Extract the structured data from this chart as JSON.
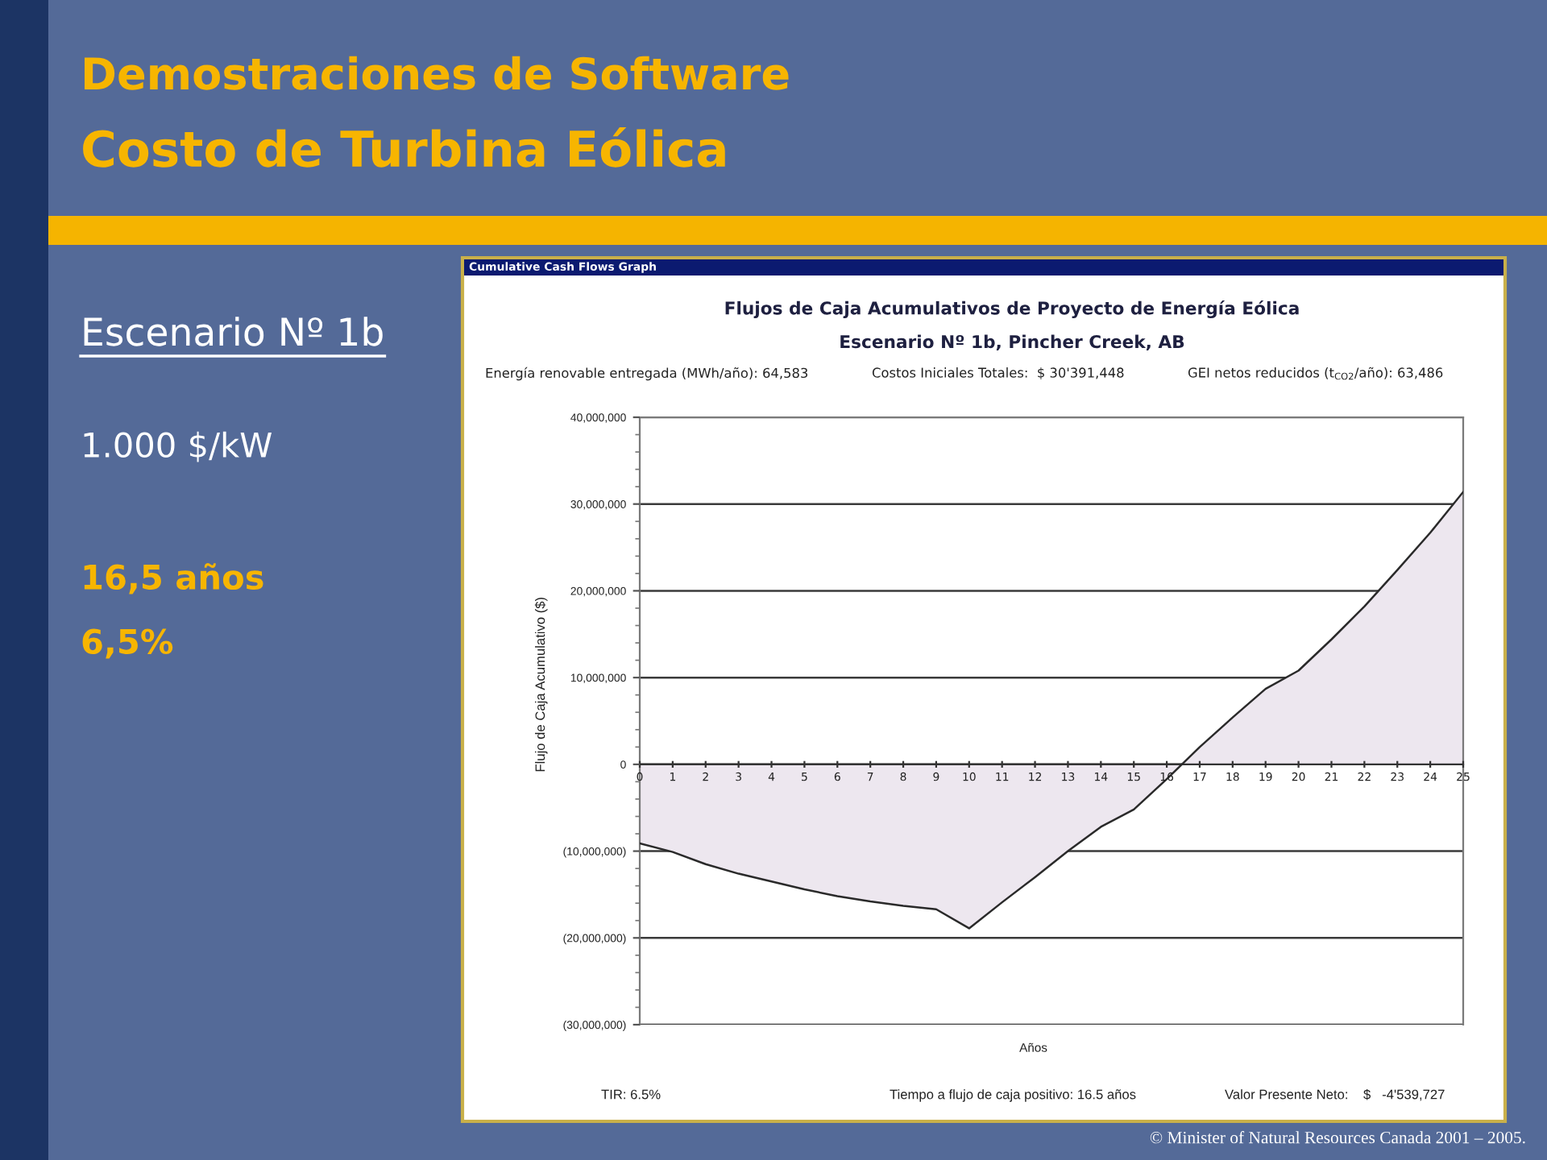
{
  "chart_data": {
    "type": "area",
    "title": "Flujos de Caja Acumulativos de Proyecto de Energía Eólica",
    "subtitle": "Escenario Nº 1b, Pincher Creek, AB",
    "xlabel": "Años",
    "ylabel": "Flujo de Caja Acumulativo ($)",
    "x": [
      0,
      1,
      2,
      3,
      4,
      5,
      6,
      7,
      8,
      9,
      10,
      11,
      12,
      13,
      14,
      15,
      16,
      17,
      18,
      19,
      20,
      21,
      22,
      23,
      24,
      25
    ],
    "series": [
      {
        "color": "#ede7ef",
        "values": [
          -9100000,
          -10100000,
          -11500000,
          -12600000,
          -13500000,
          -14400000,
          -15200000,
          -15800000,
          -16300000,
          -16700000,
          -18900000,
          -15900000,
          -13000000,
          -10000000,
          -7200000,
          -5200000,
          -1700000,
          2000000,
          5400000,
          8700000,
          10800000,
          14400000,
          18200000,
          22400000,
          26700000,
          31400000
        ]
      }
    ],
    "xlim": [
      0,
      25
    ],
    "xticks": [
      0,
      1,
      2,
      3,
      4,
      5,
      6,
      7,
      8,
      9,
      10,
      11,
      12,
      13,
      14,
      15,
      16,
      17,
      18,
      19,
      20,
      21,
      22,
      23,
      24,
      25
    ],
    "ylim": [
      -30000000,
      40000000
    ],
    "yticks": [
      {
        "value": -30000000,
        "label": "(30,000,000)"
      },
      {
        "value": -20000000,
        "label": "(20,000,000)"
      },
      {
        "value": -10000000,
        "label": "(10,000,000)"
      },
      {
        "value": 0,
        "label": "0"
      },
      {
        "value": 10000000,
        "label": "10,000,000"
      },
      {
        "value": 20000000,
        "label": "20,000,000"
      },
      {
        "value": 30000000,
        "label": "30,000,000"
      },
      {
        "value": 40000000,
        "label": "40,000,000"
      }
    ],
    "grid": "y",
    "annotations": [
      "Demostraciones de Software",
      "Costo de Turbina Eólica",
      "Escenario Nº 1b",
      "1.000 $/kW",
      "16,5 años",
      "6,5%",
      "Cumulative Cash Flows Graph",
      "Energía renovable entregada (MWh/año): 64,583",
      "Costos Iniciales Totales:  $ 30'391,448",
      "GEI netos reducidos (t$_{CO2}$/año): 63,486",
      "TIR: 6.5%",
      "Tiempo a flujo de caja positivo: 16.5 años",
      "Valor Presente Neto:    $   -4'539,727",
      "© Minister of Natural Resources Canada 2001 – 2005."
    ]
  }
}
